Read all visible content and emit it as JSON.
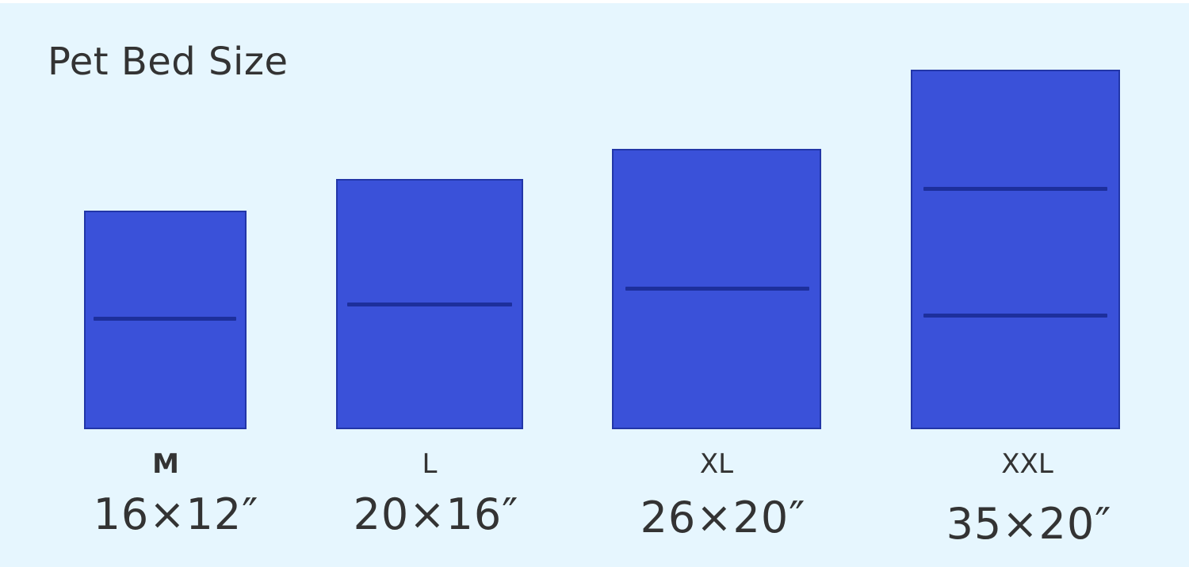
{
  "title": "Pet Bed Size",
  "colors": {
    "background": "#e6f6fe",
    "bed_fill": "#3a51d9",
    "bed_seam": "#1d2f9c",
    "text": "#333333"
  },
  "beds": [
    {
      "size": "M",
      "dimensions": "16×12″"
    },
    {
      "size": "L",
      "dimensions": "20×16″"
    },
    {
      "size": "XL",
      "dimensions": "26×20″"
    },
    {
      "size": "XXL",
      "dimensions": "35×20″"
    }
  ]
}
